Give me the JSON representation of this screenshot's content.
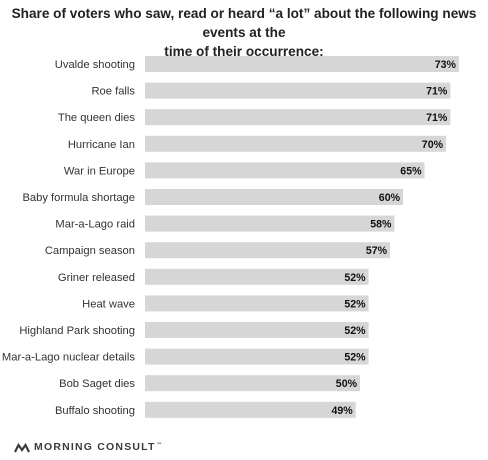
{
  "title_lines": [
    "Share of voters who saw, read or heard “a lot” about the following news events at the",
    "time of their occurrence:"
  ],
  "chart_data": {
    "type": "bar",
    "orientation": "horizontal",
    "title": "Share of voters who saw, read or heard “a lot” about the following news events at the time of their occurrence:",
    "categories": [
      "Uvalde shooting",
      "Roe falls",
      "The queen dies",
      "Hurricane Ian",
      "War in Europe",
      "Baby formula shortage",
      "Mar-a-Lago raid",
      "Campaign season",
      "Griner released",
      "Heat wave",
      "Highland Park shooting",
      "Mar-a-Lago nuclear details",
      "Bob Saget dies",
      "Buffalo shooting"
    ],
    "values": [
      73,
      71,
      71,
      70,
      65,
      60,
      58,
      57,
      52,
      52,
      52,
      52,
      50,
      49
    ],
    "value_labels": [
      "73%",
      "71%",
      "71%",
      "70%",
      "65%",
      "60%",
      "58%",
      "57%",
      "52%",
      "52%",
      "52%",
      "52%",
      "50%",
      "49%"
    ],
    "unit": "%",
    "xlim": [
      0,
      100
    ],
    "grid": false,
    "legend": "none",
    "bar_color": "#d6d6d6"
  },
  "brand": {
    "name": "MORNING CONSULT",
    "mark": "™",
    "logo_icon": "morning-consult-logo-icon"
  }
}
